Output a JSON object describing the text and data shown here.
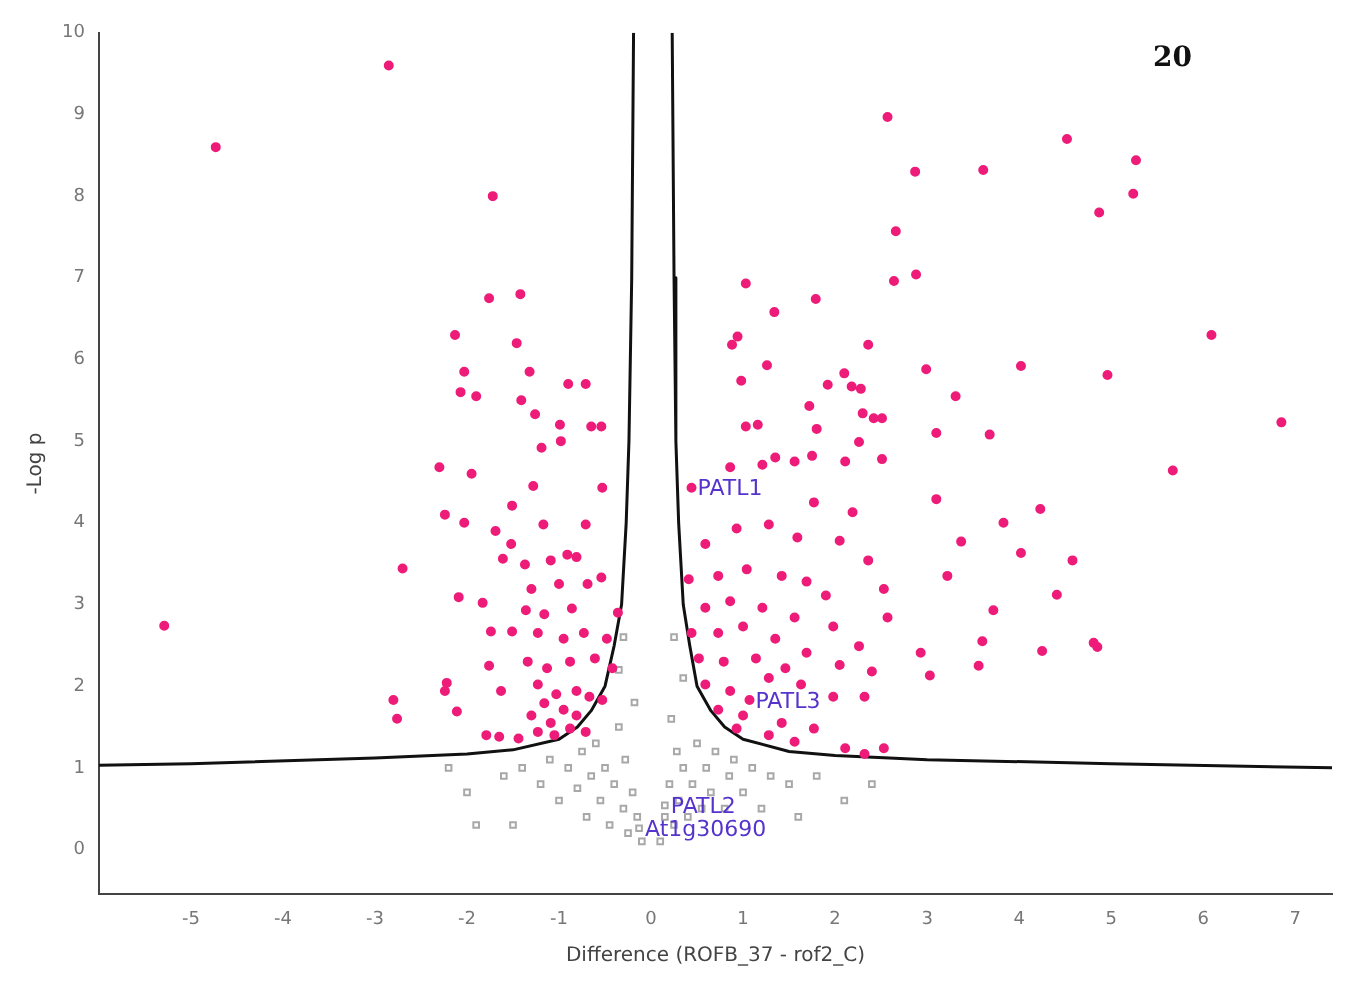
{
  "chart_data": {
    "type": "scatter",
    "xlabel": "Difference (ROFB_37 - rof2_C)",
    "ylabel": "-Log p",
    "xlim": [
      -6,
      7.4
    ],
    "ylim": [
      -0.55,
      10
    ],
    "xticks": [
      -5,
      -4,
      -3,
      -2,
      -1,
      0,
      1,
      2,
      3,
      4,
      5,
      6,
      7
    ],
    "yticks": [
      0,
      1,
      2,
      3,
      4,
      5,
      6,
      7,
      8,
      9,
      10
    ],
    "grid": false,
    "legend": false,
    "annotations": [
      "20",
      {
        "text": "PATL1",
        "x": 0.44,
        "y": 4.43
      },
      {
        "text": "PATL3",
        "x": 1.07,
        "y": 1.83
      },
      {
        "text": "PATL2",
        "x": 0.15,
        "y": 0.54
      },
      {
        "text": "At1g30690",
        "x": -0.13,
        "y": 0.26
      }
    ],
    "series": [
      {
        "type": "scatter",
        "marker": "circle",
        "color": "#ee1c79",
        "x": [
          -4.73,
          -2.85,
          -1.72,
          -1.76,
          -1.42,
          -2.13,
          -1.46,
          -2.03,
          -1.32,
          -2.07,
          -1.9,
          -1.41,
          -0.9,
          -0.71,
          -1.26,
          -0.99,
          -0.65,
          -0.54,
          -1.19,
          -0.98,
          2.57,
          2.87,
          3.61,
          4.52,
          5.27,
          5.24,
          4.87,
          2.66,
          2.64,
          2.88,
          1.03,
          1.34,
          1.79,
          0.88,
          0.94,
          2.36,
          6.09,
          1.26,
          2.99,
          4.02,
          4.96,
          0.98,
          2.1,
          1.92,
          2.18,
          2.28,
          3.31,
          1.72,
          2.3,
          2.42,
          2.51,
          6.85,
          1.03,
          1.16,
          1.8,
          3.1,
          3.68,
          2.26,
          5.67,
          4.23,
          4.02,
          4.58,
          3.6,
          3.03,
          4.25,
          4.85,
          3.37,
          3.1,
          -5.29,
          -2.7,
          -2.76,
          -2.8,
          -2.3,
          -2.22,
          -1.95,
          -2.24,
          -2.03,
          -1.51,
          -1.28,
          -1.17,
          -0.53,
          -0.71,
          -1.69,
          -1.52,
          -1.61,
          -1.37,
          -0.91,
          -1.09,
          -0.81,
          -0.54,
          -0.69,
          -1.0,
          -1.3,
          -2.09,
          -1.83,
          -1.74,
          -1.36,
          -1.16,
          -0.86,
          -0.36,
          -1.51,
          -1.23,
          -0.95,
          -0.73,
          -0.48,
          -1.76,
          -1.34,
          -1.13,
          -0.88,
          -0.61,
          -0.42,
          -2.24,
          -2.11,
          -1.63,
          -1.23,
          -1.03,
          -0.81,
          -0.67,
          -1.16,
          -0.95,
          -0.81,
          -0.53,
          -1.3,
          -1.09,
          -0.88,
          -1.79,
          -1.65,
          -1.44,
          -1.23,
          -1.05,
          -0.71,
          0.44,
          0.86,
          1.21,
          1.56,
          1.75,
          1.35,
          2.11,
          2.51,
          0.59,
          0.93,
          1.28,
          1.59,
          1.77,
          2.05,
          2.36,
          2.19,
          0.41,
          0.73,
          1.04,
          1.42,
          1.69,
          1.9,
          2.53,
          2.57,
          0.59,
          0.86,
          1.21,
          1.56,
          1.98,
          2.26,
          0.44,
          0.73,
          1.0,
          1.35,
          1.69,
          2.05,
          2.4,
          0.52,
          0.79,
          1.14,
          1.46,
          0.59,
          0.86,
          1.28,
          1.63,
          1.98,
          2.32,
          0.73,
          1.0,
          1.42,
          1.77,
          2.11,
          2.32,
          2.53,
          0.93,
          1.28,
          1.56,
          1.07,
          2.93,
          3.56,
          3.22,
          3.72,
          4.41,
          3.83,
          4.81
        ],
        "values": [
          8.6,
          9.6,
          8.0,
          6.75,
          6.8,
          6.3,
          6.2,
          5.85,
          5.85,
          5.6,
          5.55,
          5.5,
          5.7,
          5.7,
          5.33,
          5.2,
          5.18,
          5.18,
          4.92,
          5.0,
          8.97,
          8.3,
          8.32,
          8.7,
          8.44,
          8.03,
          7.8,
          7.57,
          6.96,
          7.04,
          6.93,
          6.58,
          6.74,
          6.18,
          6.28,
          6.18,
          6.3,
          5.93,
          5.88,
          5.92,
          5.81,
          5.74,
          5.83,
          5.69,
          5.67,
          5.64,
          5.55,
          5.43,
          5.34,
          5.28,
          5.28,
          5.23,
          5.18,
          5.2,
          5.15,
          5.1,
          5.08,
          4.99,
          4.64,
          4.17,
          3.63,
          3.54,
          2.55,
          2.13,
          2.43,
          2.48,
          3.77,
          4.29,
          2.74,
          3.44,
          1.6,
          1.83,
          4.68,
          2.04,
          4.6,
          4.1,
          4.0,
          4.21,
          4.45,
          3.98,
          4.43,
          3.98,
          3.9,
          3.74,
          3.56,
          3.49,
          3.61,
          3.54,
          3.58,
          3.33,
          3.25,
          3.25,
          3.19,
          3.09,
          3.02,
          2.67,
          2.93,
          2.88,
          2.95,
          2.9,
          2.67,
          2.65,
          2.58,
          2.65,
          2.58,
          2.25,
          2.3,
          2.22,
          2.3,
          2.34,
          2.22,
          1.94,
          1.69,
          1.94,
          2.02,
          1.9,
          1.94,
          1.87,
          1.79,
          1.71,
          1.64,
          1.83,
          1.64,
          1.55,
          1.48,
          1.4,
          1.38,
          1.36,
          1.44,
          1.4,
          1.44,
          4.43,
          4.68,
          4.71,
          4.75,
          4.82,
          4.8,
          4.75,
          4.78,
          3.74,
          3.93,
          3.98,
          3.82,
          4.25,
          3.78,
          3.54,
          4.13,
          3.31,
          3.35,
          3.43,
          3.35,
          3.28,
          3.11,
          3.19,
          2.84,
          2.96,
          3.04,
          2.96,
          2.84,
          2.73,
          2.49,
          2.65,
          2.65,
          2.73,
          2.58,
          2.41,
          2.26,
          2.18,
          2.34,
          2.3,
          2.34,
          2.22,
          2.02,
          1.94,
          2.1,
          2.02,
          1.87,
          1.87,
          1.71,
          1.64,
          1.55,
          1.48,
          1.24,
          1.17,
          1.24,
          1.48,
          1.4,
          1.32,
          1.83,
          2.41,
          2.25,
          3.35,
          2.93,
          3.12,
          4.0,
          2.53
        ]
      },
      {
        "type": "scatter",
        "marker": "square",
        "color": "#a8a8a8",
        "x": [
          -1.6,
          -1.4,
          -1.2,
          -1.1,
          -1.0,
          -0.9,
          -0.8,
          -0.75,
          -0.7,
          -0.65,
          -0.6,
          -0.55,
          -0.5,
          -0.45,
          -0.4,
          -0.35,
          -0.3,
          -0.28,
          -0.25,
          -0.2,
          -0.18,
          -0.15,
          -0.1,
          -2.0,
          -1.9,
          -2.2,
          -1.5,
          -0.35,
          -0.3,
          0.1,
          0.15,
          0.2,
          0.22,
          0.25,
          0.28,
          0.3,
          0.35,
          0.35,
          0.4,
          0.45,
          0.5,
          0.55,
          0.6,
          0.65,
          0.7,
          0.8,
          0.85,
          0.9,
          1.0,
          1.1,
          1.2,
          1.3,
          1.5,
          1.6,
          1.8,
          2.1,
          2.4,
          0.25,
          0.15,
          -0.13
        ],
        "values": [
          0.9,
          1.0,
          0.8,
          1.1,
          0.6,
          1.0,
          0.75,
          1.2,
          0.4,
          0.9,
          1.3,
          0.6,
          1.0,
          0.3,
          0.8,
          1.5,
          0.5,
          1.1,
          0.2,
          0.7,
          1.8,
          0.4,
          0.1,
          0.7,
          0.3,
          1.0,
          0.3,
          2.2,
          2.6,
          0.1,
          0.4,
          0.8,
          1.6,
          0.3,
          1.2,
          0.6,
          2.1,
          1.0,
          0.4,
          0.8,
          1.3,
          0.5,
          1.0,
          0.7,
          1.2,
          0.5,
          0.9,
          1.1,
          0.7,
          1.0,
          0.5,
          0.9,
          0.8,
          0.4,
          0.9,
          0.6,
          0.8,
          2.6,
          0.54,
          0.26
        ]
      },
      {
        "type": "line",
        "marker": "none",
        "color": "#111111",
        "x": [
          -6,
          -5,
          -3,
          -2,
          -1.5,
          -1,
          -0.8,
          -0.65,
          -0.5,
          -0.4,
          -0.32,
          -0.27,
          -0.24,
          -0.21,
          -0.19
        ],
        "values": [
          1.03,
          1.05,
          1.12,
          1.17,
          1.22,
          1.35,
          1.5,
          1.7,
          2,
          2.5,
          3,
          4,
          5,
          7,
          10
        ]
      },
      {
        "type": "line",
        "marker": "none",
        "color": "#111111",
        "x": [
          0.23,
          0.25,
          0.27,
          0.3,
          0.35,
          0.42,
          0.5,
          0.65,
          0.8,
          1,
          1.5,
          2,
          3,
          5,
          7.4
        ],
        "values": [
          10,
          7,
          5,
          4,
          3,
          2.5,
          2,
          1.7,
          1.5,
          1.35,
          1.2,
          1.15,
          1.1,
          1.05,
          1.0
        ]
      }
    ]
  }
}
